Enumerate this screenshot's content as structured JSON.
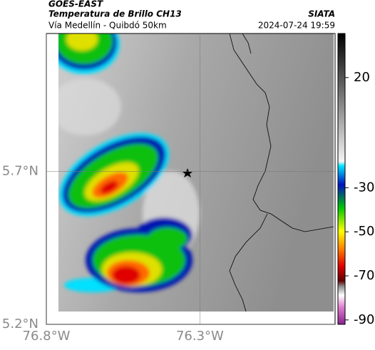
{
  "chart_data": {
    "type": "map",
    "title": "GOES-EAST",
    "subtitle": "Temperatura de Brillo CH13",
    "caption": "Vía Medellín - Quibdó 50km",
    "source": "SIATA",
    "timestamp": "2024-07-24 19:59",
    "xlim": [
      -76.8,
      -75.86
    ],
    "ylim": [
      5.2,
      6.15
    ],
    "xticks": [
      {
        "value": -76.8,
        "label": "76.8°W"
      },
      {
        "value": -76.3,
        "label": "76.3°W"
      }
    ],
    "yticks": [
      {
        "value": 5.7,
        "label": "5.7°N"
      },
      {
        "value": 5.2,
        "label": "5.2°N"
      }
    ],
    "grid": true,
    "colorbar": {
      "lim": [
        -92,
        40
      ],
      "ticks": [
        20,
        -30,
        -50,
        -70,
        -90
      ]
    }
  }
}
